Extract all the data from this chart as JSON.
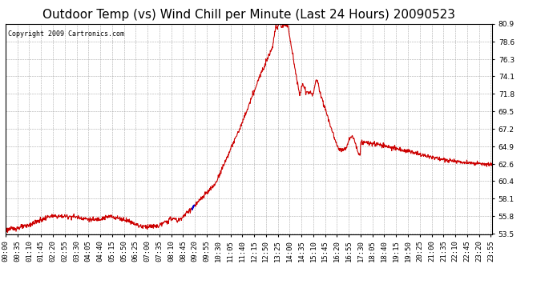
{
  "title": "Outdoor Temp (vs) Wind Chill per Minute (Last 24 Hours) 20090523",
  "copyright_text": "Copyright 2009 Cartronics.com",
  "y_ticks": [
    53.5,
    55.8,
    58.1,
    60.4,
    62.6,
    64.9,
    67.2,
    69.5,
    71.8,
    74.1,
    76.3,
    78.6,
    80.9
  ],
  "ylim": [
    53.5,
    80.9
  ],
  "line_color": "#cc0000",
  "blue_segment_color": "#0000cc",
  "background_color": "#ffffff",
  "plot_bg_color": "#ffffff",
  "grid_color": "#aaaaaa",
  "title_fontsize": 11,
  "tick_fontsize": 6.5,
  "copyright_fontsize": 6
}
